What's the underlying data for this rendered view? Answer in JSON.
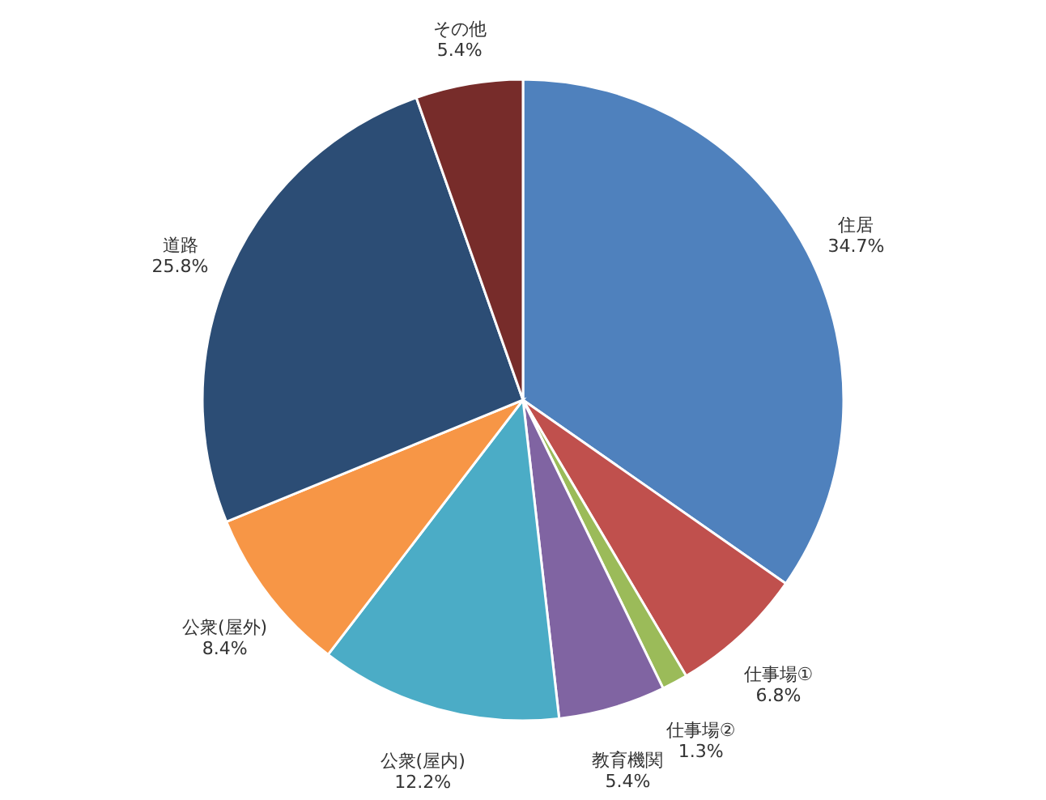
{
  "chart_data": {
    "type": "pie",
    "categories": [
      "住居",
      "仕事場①",
      "仕事場②",
      "教育機関",
      "公衆(屋内)",
      "公衆(屋外)",
      "道路",
      "その他"
    ],
    "values": [
      34.7,
      6.8,
      1.3,
      5.4,
      12.2,
      8.4,
      25.8,
      5.4
    ],
    "value_labels": [
      "34.7%",
      "6.8%",
      "1.3%",
      "5.4%",
      "12.2%",
      "8.4%",
      "25.8%",
      "5.4%"
    ],
    "colors": [
      "#4f81bd",
      "#c0504d",
      "#9bbb59",
      "#8064a2",
      "#4bacc6",
      "#f79646",
      "#2c4d75",
      "#772c2a"
    ]
  }
}
